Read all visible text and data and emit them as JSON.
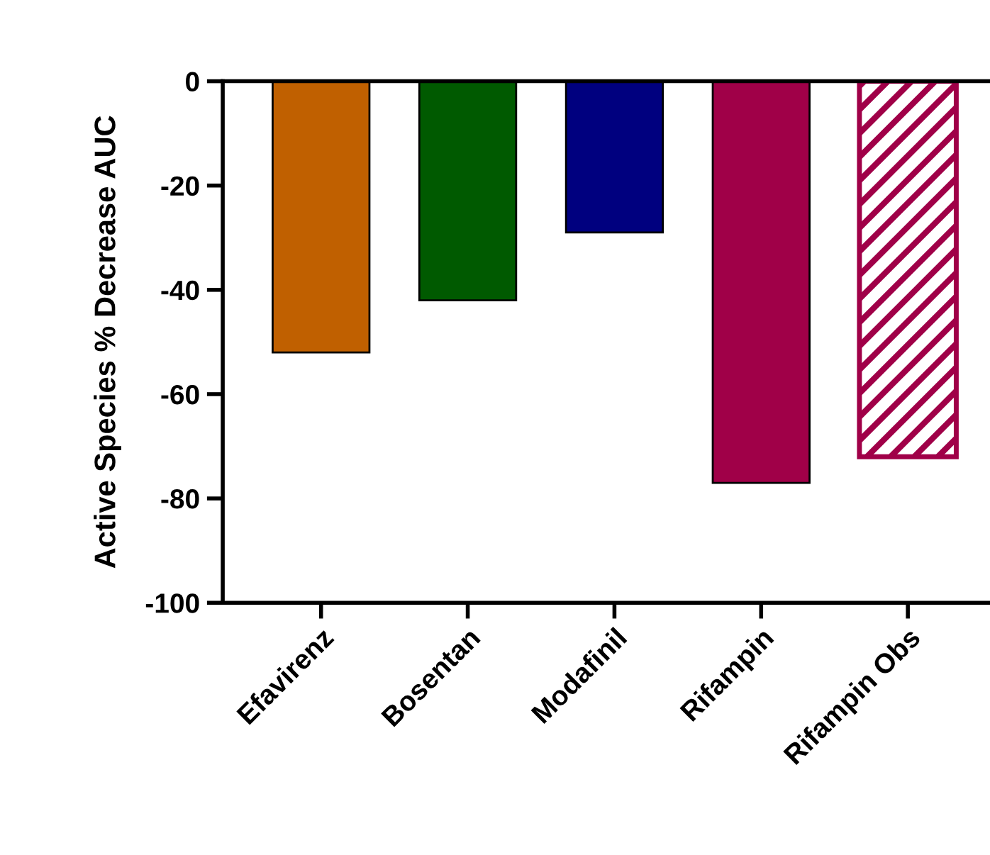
{
  "chart_data": {
    "type": "bar",
    "ylabel": "Active Species % Decrease AUC",
    "categories": [
      "Efavirenz",
      "Bosentan",
      "Modafinil",
      "Rifampin",
      "Rifampin Obs"
    ],
    "series": [
      {
        "colors": [
          "#c06000",
          "#005a00",
          "#00007f",
          "#a00048",
          null
        ],
        "values": [
          -52,
          -42,
          -29,
          -77,
          null
        ]
      },
      {
        "color": "#a00048",
        "values": [
          null,
          null,
          null,
          null,
          -72
        ]
      }
    ],
    "ylim": [
      -100,
      0
    ],
    "yticks": [
      -100,
      -80,
      -60,
      -40,
      -20,
      0
    ],
    "grid": false,
    "legend": false
  }
}
